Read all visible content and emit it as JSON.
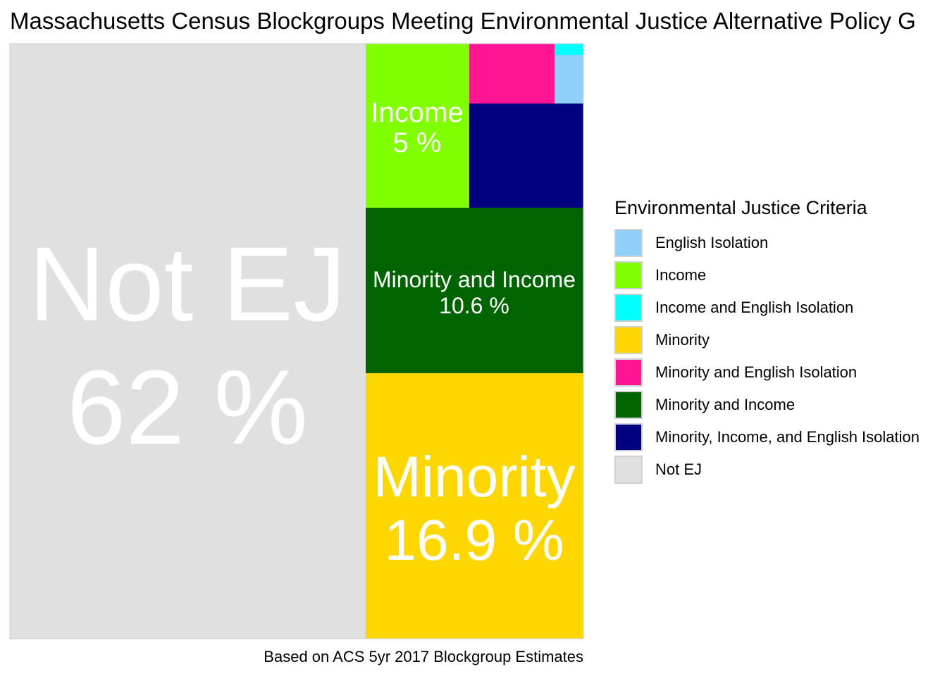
{
  "title": "Massachusetts Census Blockgroups Meeting Environmental Justice Alternative Policy G",
  "caption": "Based on ACS 5yr 2017 Blockgroup Estimates",
  "chart_data": {
    "type": "treemap",
    "legend_title": "Environmental Justice Criteria",
    "legend_position": "right",
    "categories": [
      {
        "name": "English Isolation",
        "color": "#8FCFFA"
      },
      {
        "name": "Income",
        "color": "#80FF00"
      },
      {
        "name": "Income and English Isolation",
        "color": "#00FFFF"
      },
      {
        "name": "Minority",
        "color": "#FFD700"
      },
      {
        "name": "Minority and English Isolation",
        "color": "#FF1493"
      },
      {
        "name": "Minority and Income",
        "color": "#006400"
      },
      {
        "name": "Minority, Income, and English Isolation",
        "color": "#000080"
      },
      {
        "name": "Not EJ",
        "color": "#E0E0E0"
      }
    ],
    "values": {
      "Not EJ": 62,
      "Minority": 16.9,
      "Minority and Income": 10.6,
      "Income": 5,
      "Minority, Income, and English Isolation": 3.3,
      "Minority and English Isolation": 1.5,
      "English Isolation": 0.6,
      "Income and English Isolation": 0.1
    },
    "tile_labels": [
      {
        "category": "Not EJ",
        "name": "Not EJ",
        "value": "62 %"
      },
      {
        "category": "Minority",
        "name": "Minority",
        "value": "16.9 %"
      },
      {
        "category": "Minority and Income",
        "name": "Minority and Income",
        "value": "10.6 %"
      },
      {
        "category": "Income",
        "name": "Income",
        "value": "5 %"
      }
    ]
  }
}
